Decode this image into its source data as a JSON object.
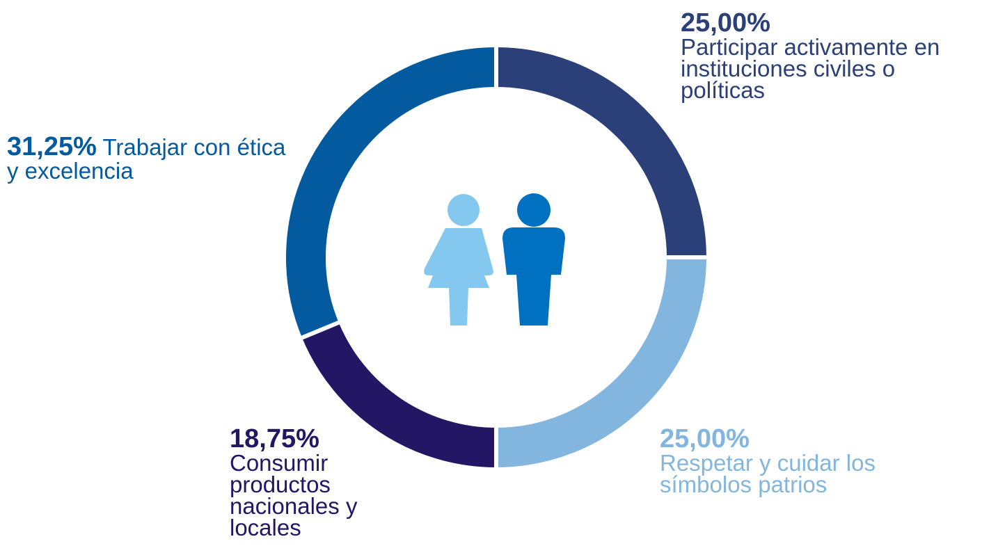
{
  "chart_data": {
    "type": "donut",
    "categories": [
      "Participar activamente en instituciones civiles o políticas",
      "Respetar y cuidar los símbolos patrios",
      "Consumir productos nacionales y locales",
      "Trabajar con ética y excelencia"
    ],
    "values": [
      25,
      25,
      18.75,
      31.25
    ],
    "value_labels": [
      "25,00%",
      "25,00%",
      "18,75%",
      "31,25%"
    ],
    "colors": [
      "#2b3f78",
      "#82b6de",
      "#231765",
      "#045a9f"
    ]
  }
}
